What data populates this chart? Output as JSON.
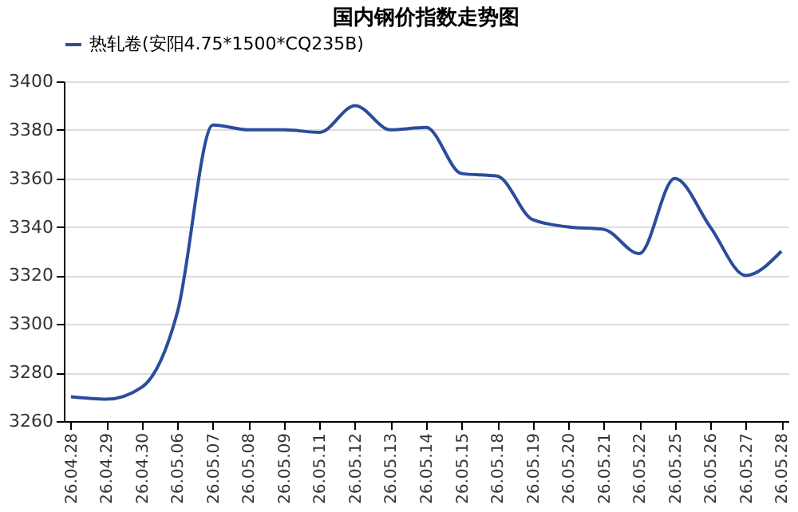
{
  "chart_data": {
    "type": "line",
    "title": "国内钢价指数走势图",
    "categories": [
      "26.04.28",
      "26.04.29",
      "26.04.30",
      "26.05.06",
      "26.05.07",
      "26.05.08",
      "26.05.09",
      "26.05.11",
      "26.05.12",
      "26.05.13",
      "26.05.14",
      "26.05.15",
      "26.05.18",
      "26.05.19",
      "26.05.20",
      "26.05.21",
      "26.05.22",
      "26.05.25",
      "26.05.26",
      "26.05.27",
      "26.05.28"
    ],
    "series": [
      {
        "name": "热轧卷(安阳4.75*1500*CQ235B)",
        "color": "#2a4d9b",
        "values": [
          3270,
          3269,
          3274,
          3305,
          3382,
          3380,
          3380,
          3379,
          3390,
          3380,
          3381,
          3362,
          3361,
          3343,
          3340,
          3339,
          3329,
          3360,
          3340,
          3320,
          3330
        ]
      }
    ],
    "ylim": [
      3260,
      3400
    ],
    "yticks": [
      3260,
      3280,
      3300,
      3320,
      3340,
      3360,
      3380,
      3400
    ],
    "grid": "y",
    "legend": "top",
    "marker": "none",
    "line_style": "solid"
  }
}
